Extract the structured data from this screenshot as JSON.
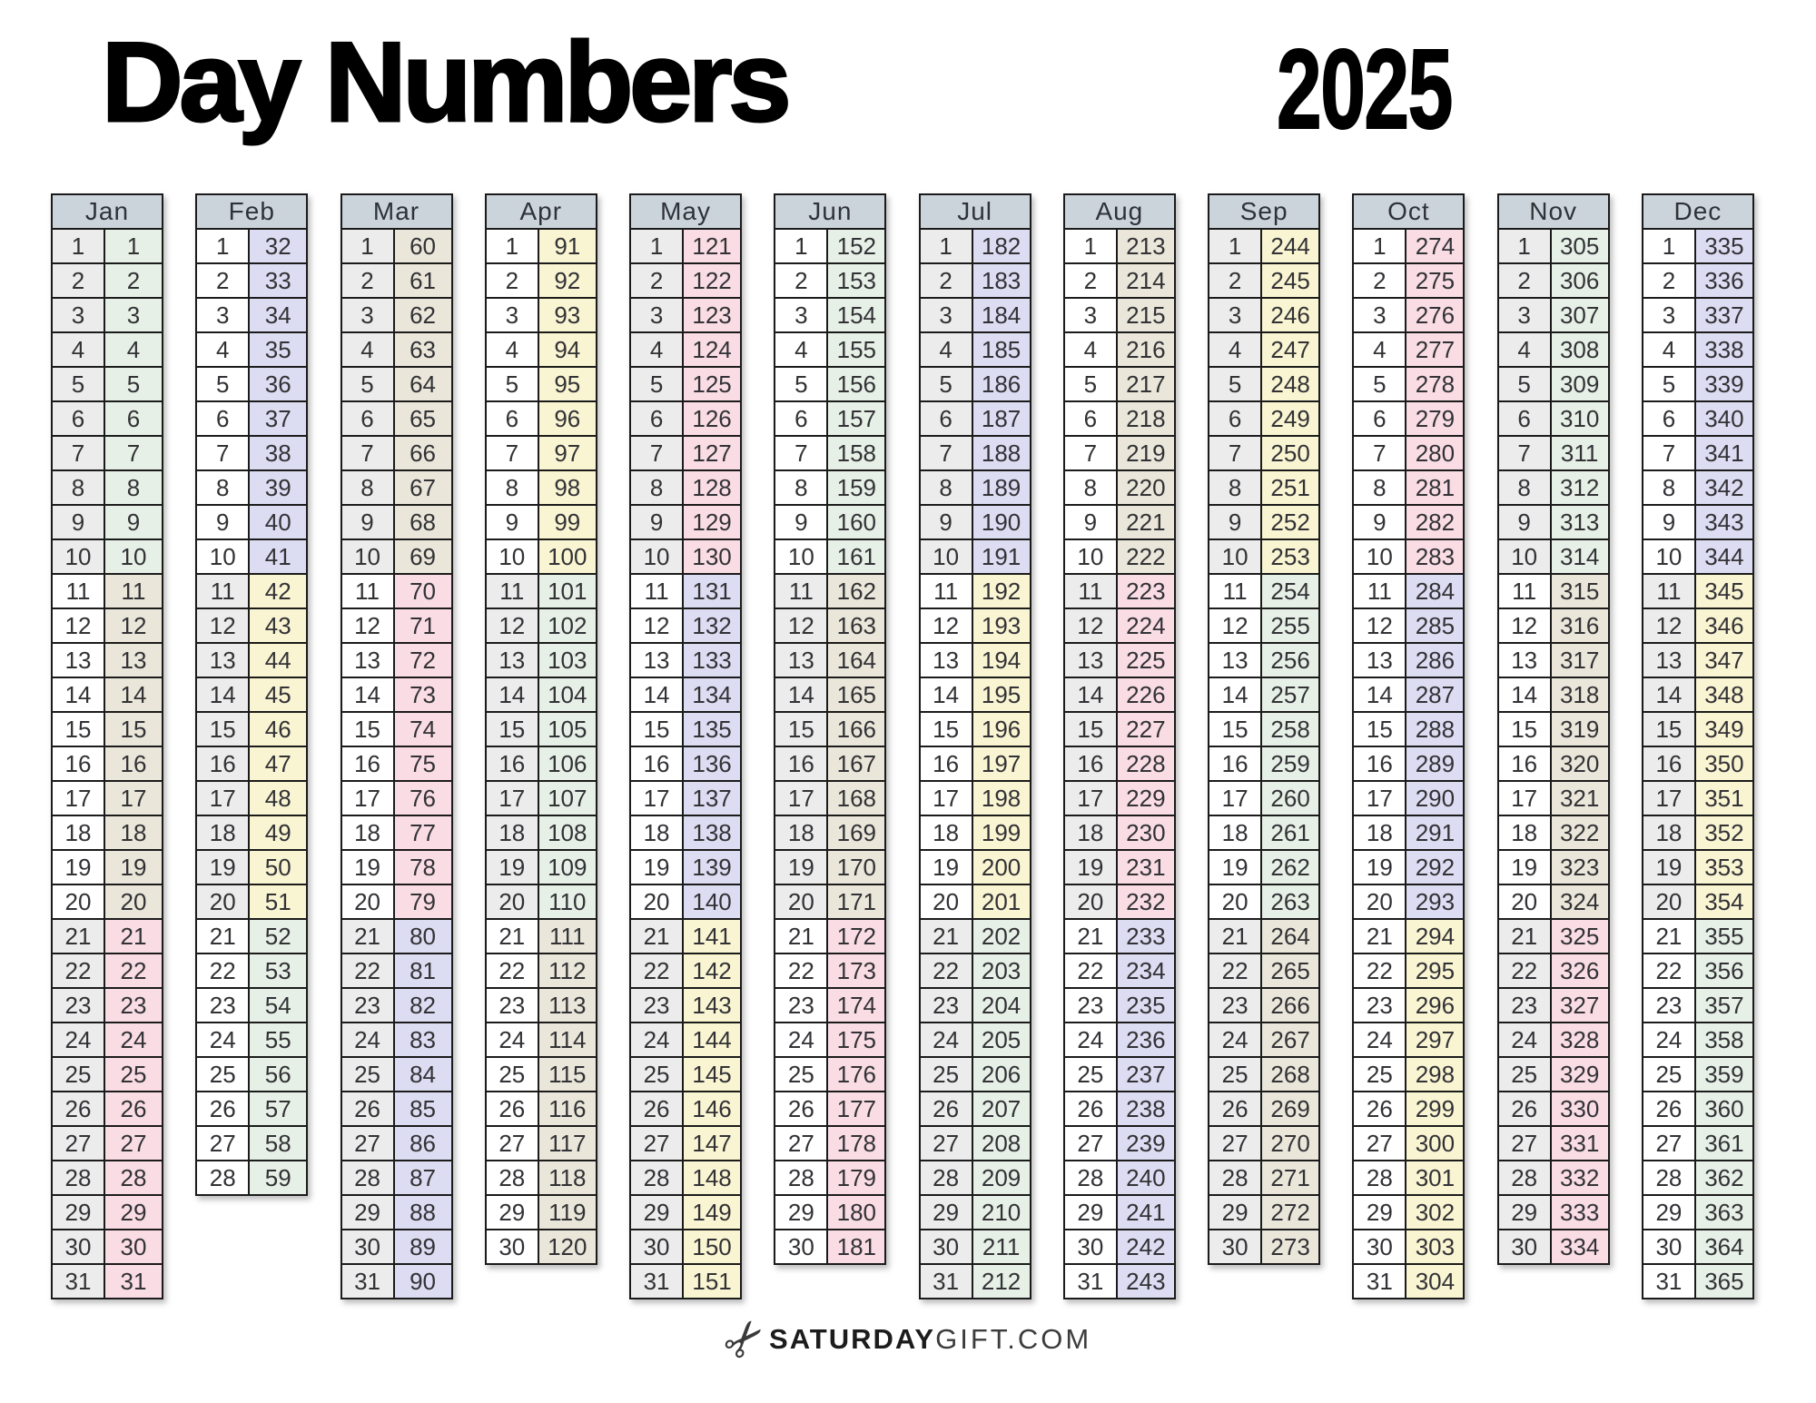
{
  "title": "Day Numbers",
  "year": "2025",
  "footer": {
    "icon": "scissors-icon",
    "brand_bold": "SATURDAY",
    "brand_regular": "GIFT.COM"
  },
  "palette": {
    "green": "#e7f0e6",
    "lavender": "#dcdcf2",
    "beige": "#eae6d9",
    "yellow": "#f9f4d1",
    "pink": "#f9dce4",
    "gray": "#ececec",
    "white": "#ffffff",
    "header_bg": "#ccd4db",
    "border": "#1b1b1b"
  },
  "months": [
    {
      "name": "Jan",
      "day_of_month": [
        1,
        2,
        3,
        4,
        5,
        6,
        7,
        8,
        9,
        10,
        11,
        12,
        13,
        14,
        15,
        16,
        17,
        18,
        19,
        20,
        21,
        22,
        23,
        24,
        25,
        26,
        27,
        28,
        29,
        30,
        31
      ],
      "day_numbers": [
        1,
        2,
        3,
        4,
        5,
        6,
        7,
        8,
        9,
        10,
        11,
        12,
        13,
        14,
        15,
        16,
        17,
        18,
        19,
        20,
        21,
        22,
        23,
        24,
        25,
        26,
        27,
        28,
        29,
        30,
        31
      ],
      "number_block_colors": [
        "green",
        "beige",
        "pink"
      ],
      "day_block_colors": [
        "gray",
        "white",
        "gray"
      ]
    },
    {
      "name": "Feb",
      "day_of_month": [
        1,
        2,
        3,
        4,
        5,
        6,
        7,
        8,
        9,
        10,
        11,
        12,
        13,
        14,
        15,
        16,
        17,
        18,
        19,
        20,
        21,
        22,
        23,
        24,
        25,
        26,
        27,
        28
      ],
      "day_numbers": [
        32,
        33,
        34,
        35,
        36,
        37,
        38,
        39,
        40,
        41,
        42,
        43,
        44,
        45,
        46,
        47,
        48,
        49,
        50,
        51,
        52,
        53,
        54,
        55,
        56,
        57,
        58,
        59
      ],
      "number_block_colors": [
        "lavender",
        "yellow",
        "green"
      ],
      "day_block_colors": [
        "white",
        "gray",
        "white"
      ]
    },
    {
      "name": "Mar",
      "day_of_month": [
        1,
        2,
        3,
        4,
        5,
        6,
        7,
        8,
        9,
        10,
        11,
        12,
        13,
        14,
        15,
        16,
        17,
        18,
        19,
        20,
        21,
        22,
        23,
        24,
        25,
        26,
        27,
        28,
        29,
        30,
        31
      ],
      "day_numbers": [
        60,
        61,
        62,
        63,
        64,
        65,
        66,
        67,
        68,
        69,
        70,
        71,
        72,
        73,
        74,
        75,
        76,
        77,
        78,
        79,
        80,
        81,
        82,
        83,
        84,
        85,
        86,
        87,
        88,
        89,
        90
      ],
      "number_block_colors": [
        "beige",
        "pink",
        "lavender"
      ],
      "day_block_colors": [
        "gray",
        "white",
        "gray"
      ]
    },
    {
      "name": "Apr",
      "day_of_month": [
        1,
        2,
        3,
        4,
        5,
        6,
        7,
        8,
        9,
        10,
        11,
        12,
        13,
        14,
        15,
        16,
        17,
        18,
        19,
        20,
        21,
        22,
        23,
        24,
        25,
        26,
        27,
        28,
        29,
        30
      ],
      "day_numbers": [
        91,
        92,
        93,
        94,
        95,
        96,
        97,
        98,
        99,
        100,
        101,
        102,
        103,
        104,
        105,
        106,
        107,
        108,
        109,
        110,
        111,
        112,
        113,
        114,
        115,
        116,
        117,
        118,
        119,
        120
      ],
      "number_block_colors": [
        "yellow",
        "green",
        "beige"
      ],
      "day_block_colors": [
        "white",
        "gray",
        "white"
      ]
    },
    {
      "name": "May",
      "day_of_month": [
        1,
        2,
        3,
        4,
        5,
        6,
        7,
        8,
        9,
        10,
        11,
        12,
        13,
        14,
        15,
        16,
        17,
        18,
        19,
        20,
        21,
        22,
        23,
        24,
        25,
        26,
        27,
        28,
        29,
        30,
        31
      ],
      "day_numbers": [
        121,
        122,
        123,
        124,
        125,
        126,
        127,
        128,
        129,
        130,
        131,
        132,
        133,
        134,
        135,
        136,
        137,
        138,
        139,
        140,
        141,
        142,
        143,
        144,
        145,
        146,
        147,
        148,
        149,
        150,
        151
      ],
      "number_block_colors": [
        "pink",
        "lavender",
        "yellow"
      ],
      "day_block_colors": [
        "gray",
        "white",
        "gray"
      ]
    },
    {
      "name": "Jun",
      "day_of_month": [
        1,
        2,
        3,
        4,
        5,
        6,
        7,
        8,
        9,
        10,
        11,
        12,
        13,
        14,
        15,
        16,
        17,
        18,
        19,
        20,
        21,
        22,
        23,
        24,
        25,
        26,
        27,
        28,
        29,
        30
      ],
      "day_numbers": [
        152,
        153,
        154,
        155,
        156,
        157,
        158,
        159,
        160,
        161,
        162,
        163,
        164,
        165,
        166,
        167,
        168,
        169,
        170,
        171,
        172,
        173,
        174,
        175,
        176,
        177,
        178,
        179,
        180,
        181
      ],
      "number_block_colors": [
        "green",
        "beige",
        "pink"
      ],
      "day_block_colors": [
        "white",
        "gray",
        "white"
      ]
    },
    {
      "name": "Jul",
      "day_of_month": [
        1,
        2,
        3,
        4,
        5,
        6,
        7,
        8,
        9,
        10,
        11,
        12,
        13,
        14,
        15,
        16,
        17,
        18,
        19,
        20,
        21,
        22,
        23,
        24,
        25,
        26,
        27,
        28,
        29,
        30,
        31
      ],
      "day_numbers": [
        182,
        183,
        184,
        185,
        186,
        187,
        188,
        189,
        190,
        191,
        192,
        193,
        194,
        195,
        196,
        197,
        198,
        199,
        200,
        201,
        202,
        203,
        204,
        205,
        206,
        207,
        208,
        209,
        210,
        211,
        212
      ],
      "number_block_colors": [
        "lavender",
        "yellow",
        "green"
      ],
      "day_block_colors": [
        "gray",
        "white",
        "gray"
      ]
    },
    {
      "name": "Aug",
      "day_of_month": [
        1,
        2,
        3,
        4,
        5,
        6,
        7,
        8,
        9,
        10,
        11,
        12,
        13,
        14,
        15,
        16,
        17,
        18,
        19,
        20,
        21,
        22,
        23,
        24,
        25,
        26,
        27,
        28,
        29,
        30,
        31
      ],
      "day_numbers": [
        213,
        214,
        215,
        216,
        217,
        218,
        219,
        220,
        221,
        222,
        223,
        224,
        225,
        226,
        227,
        228,
        229,
        230,
        231,
        232,
        233,
        234,
        235,
        236,
        237,
        238,
        239,
        240,
        241,
        242,
        243
      ],
      "number_block_colors": [
        "beige",
        "pink",
        "lavender"
      ],
      "day_block_colors": [
        "white",
        "gray",
        "white"
      ]
    },
    {
      "name": "Sep",
      "day_of_month": [
        1,
        2,
        3,
        4,
        5,
        6,
        7,
        8,
        9,
        10,
        11,
        12,
        13,
        14,
        15,
        16,
        17,
        18,
        19,
        20,
        21,
        22,
        23,
        24,
        25,
        26,
        27,
        28,
        29,
        30
      ],
      "day_numbers": [
        244,
        245,
        246,
        247,
        248,
        249,
        250,
        251,
        252,
        253,
        254,
        255,
        256,
        257,
        258,
        259,
        260,
        261,
        262,
        263,
        264,
        265,
        266,
        267,
        268,
        269,
        270,
        271,
        272,
        273
      ],
      "number_block_colors": [
        "yellow",
        "green",
        "beige"
      ],
      "day_block_colors": [
        "gray",
        "white",
        "gray"
      ]
    },
    {
      "name": "Oct",
      "day_of_month": [
        1,
        2,
        3,
        4,
        5,
        6,
        7,
        8,
        9,
        10,
        11,
        12,
        13,
        14,
        15,
        16,
        17,
        18,
        19,
        20,
        21,
        22,
        23,
        24,
        25,
        26,
        27,
        28,
        29,
        30,
        31
      ],
      "day_numbers": [
        274,
        275,
        276,
        277,
        278,
        279,
        280,
        281,
        282,
        283,
        284,
        285,
        286,
        287,
        288,
        289,
        290,
        291,
        292,
        293,
        294,
        295,
        296,
        297,
        298,
        299,
        300,
        301,
        302,
        303,
        304
      ],
      "number_block_colors": [
        "pink",
        "lavender",
        "yellow"
      ],
      "day_block_colors": [
        "white",
        "white",
        "white"
      ]
    },
    {
      "name": "Nov",
      "day_of_month": [
        1,
        2,
        3,
        4,
        5,
        6,
        7,
        8,
        9,
        10,
        11,
        12,
        13,
        14,
        15,
        16,
        17,
        18,
        19,
        20,
        21,
        22,
        23,
        24,
        25,
        26,
        27,
        28,
        29,
        30
      ],
      "day_numbers": [
        305,
        306,
        307,
        308,
        309,
        310,
        311,
        312,
        313,
        314,
        315,
        316,
        317,
        318,
        319,
        320,
        321,
        322,
        323,
        324,
        325,
        326,
        327,
        328,
        329,
        330,
        331,
        332,
        333,
        334
      ],
      "number_block_colors": [
        "green",
        "beige",
        "pink"
      ],
      "day_block_colors": [
        "gray",
        "white",
        "gray"
      ]
    },
    {
      "name": "Dec",
      "day_of_month": [
        1,
        2,
        3,
        4,
        5,
        6,
        7,
        8,
        9,
        10,
        11,
        12,
        13,
        14,
        15,
        16,
        17,
        18,
        19,
        20,
        21,
        22,
        23,
        24,
        25,
        26,
        27,
        28,
        29,
        30,
        31
      ],
      "day_numbers": [
        335,
        336,
        337,
        338,
        339,
        340,
        341,
        342,
        343,
        344,
        345,
        346,
        347,
        348,
        349,
        350,
        351,
        352,
        353,
        354,
        355,
        356,
        357,
        358,
        359,
        360,
        361,
        362,
        363,
        364,
        365
      ],
      "number_block_colors": [
        "lavender",
        "yellow",
        "green"
      ],
      "day_block_colors": [
        "white",
        "gray",
        "white"
      ]
    }
  ]
}
